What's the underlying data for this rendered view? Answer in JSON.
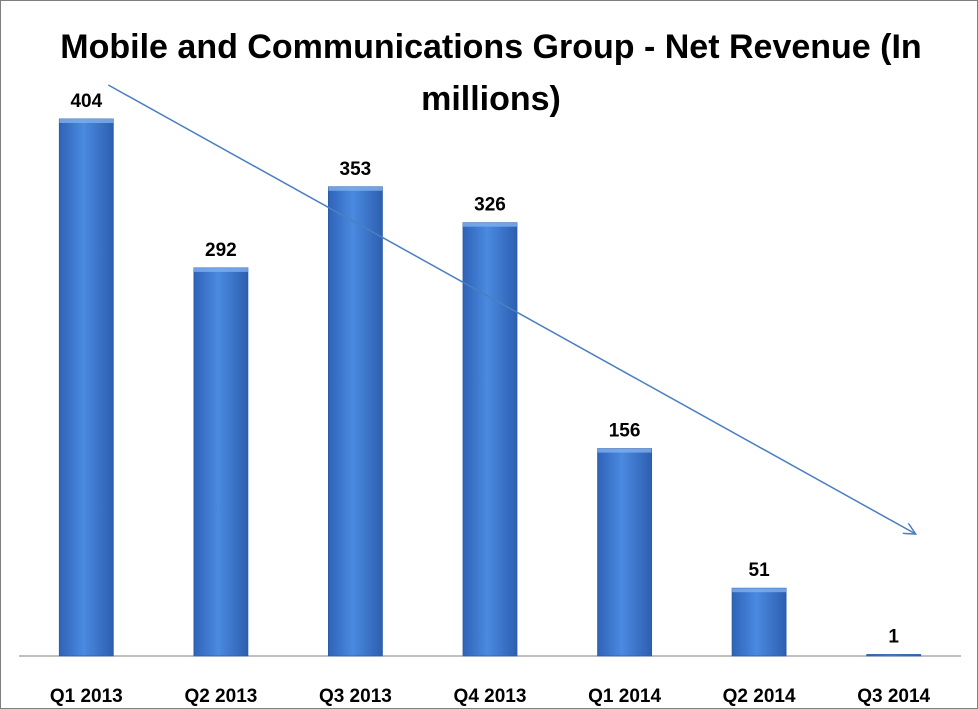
{
  "chart_data": {
    "type": "bar",
    "title": "Mobile and Communications Group - Net Revenue (In millions)",
    "categories": [
      "Q1 2013",
      "Q2 2013",
      "Q3 2013",
      "Q4 2013",
      "Q1 2014",
      "Q2 2014",
      "Q3 2014"
    ],
    "values": [
      404,
      292,
      353,
      326,
      156,
      51,
      1
    ],
    "xlabel": "",
    "ylabel": "",
    "ylim": [
      0,
      404
    ],
    "grid": false,
    "legend": "none",
    "data_labels": true,
    "trend_arrow": true,
    "colors": {
      "bar": "#3a78d4",
      "bar_dark": "#2a5aa8",
      "arrow": "#4a7fc0",
      "axis": "#808080"
    }
  }
}
